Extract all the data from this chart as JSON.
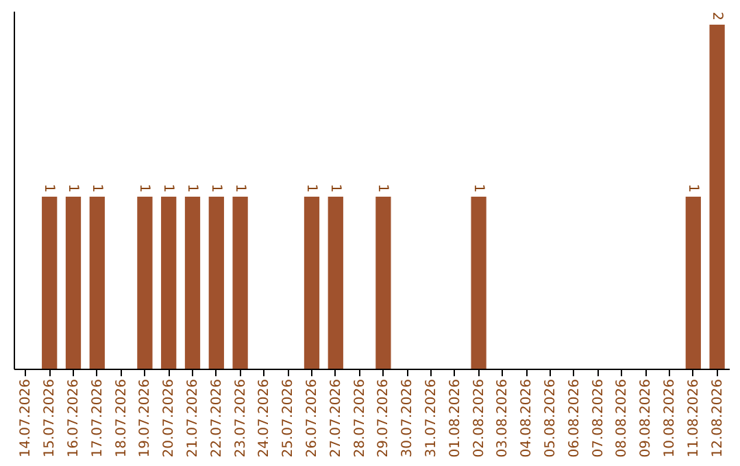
{
  "chart_data": {
    "type": "bar",
    "categories": [
      "14.07.2026",
      "15.07.2026",
      "16.07.2026",
      "17.07.2026",
      "18.07.2026",
      "19.07.2026",
      "20.07.2026",
      "21.07.2026",
      "22.07.2026",
      "23.07.2026",
      "24.07.2026",
      "25.07.2026",
      "26.07.2026",
      "27.07.2026",
      "28.07.2026",
      "29.07.2026",
      "30.07.2026",
      "31.07.2026",
      "01.08.2026",
      "02.08.2026",
      "03.08.2026",
      "04.08.2026",
      "05.08.2026",
      "06.08.2026",
      "07.08.2026",
      "08.08.2026",
      "09.08.2026",
      "10.08.2026",
      "11.08.2026",
      "12.08.2026"
    ],
    "values": [
      0,
      1,
      1,
      1,
      0,
      1,
      1,
      1,
      1,
      1,
      0,
      0,
      1,
      1,
      0,
      1,
      0,
      0,
      0,
      1,
      0,
      0,
      0,
      0,
      0,
      0,
      0,
      0,
      1,
      2
    ],
    "value_labels": [
      null,
      "1",
      "1",
      "1",
      null,
      "1",
      "1",
      "1",
      "1",
      "1",
      null,
      null,
      "1",
      "1",
      null,
      "1",
      null,
      null,
      null,
      "1",
      null,
      null,
      null,
      null,
      null,
      null,
      null,
      null,
      "1",
      "2"
    ],
    "color": "#a0522d",
    "ylim": [
      0,
      2.08
    ],
    "tick_labels": "x"
  }
}
